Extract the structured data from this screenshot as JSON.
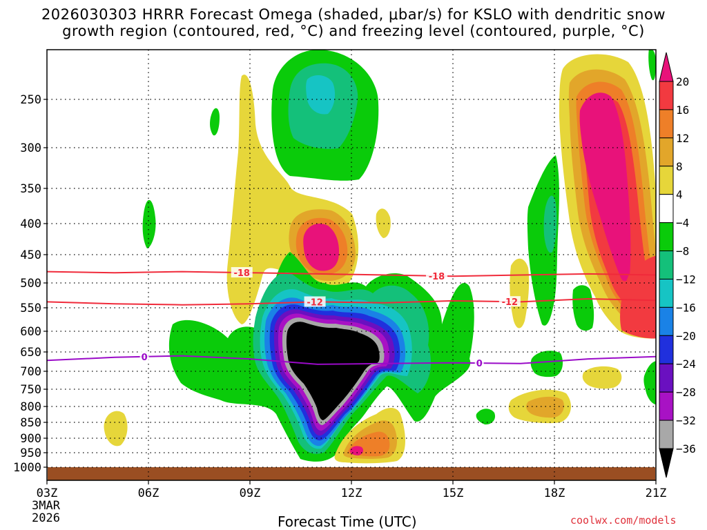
{
  "title_line1": "2026030303 HRRR Forecast Omega (shaded, μbar/s) for KSLO with dendritic snow",
  "title_line2": "growth region (contoured, red, °C) and freezing level (contoured, purple, °C)",
  "watermark": "coolwx.com/models",
  "chart_data": {
    "type": "heatmap",
    "title": "2026030303 HRRR Forecast Omega (shaded, μbar/s) for KSLO with dendritic snow growth region (contoured, red, °C) and freezing level (contoured, purple, °C)",
    "xlabel": "Forecast Time (UTC)",
    "x_ticks": [
      "03Z",
      "06Z",
      "09Z",
      "12Z",
      "15Z",
      "18Z",
      "21Z"
    ],
    "x_start_label": [
      "3MAR",
      "2026"
    ],
    "x_range_hours": [
      0,
      18
    ],
    "y_ticks": [
      250,
      300,
      350,
      400,
      450,
      500,
      550,
      600,
      650,
      700,
      750,
      800,
      850,
      900,
      950,
      1000
    ],
    "y_range_hpa": [
      200,
      1000
    ],
    "colorbar_labels": [
      "20",
      "16",
      "12",
      "8",
      "4",
      "−4",
      "−8",
      "−12",
      "−16",
      "−20",
      "−24",
      "−28",
      "−32",
      "−36"
    ],
    "colorbar_colors": [
      "#e8127a",
      "#f23a40",
      "#ee7f28",
      "#e2a62a",
      "#e6d63a",
      "#ffffff",
      "#0acb0a",
      "#14c07a",
      "#16c4c4",
      "#1a82e6",
      "#2030dd",
      "#6a10c0",
      "#a812c4",
      "#a8a8a8",
      "#000000"
    ],
    "contours": [
      {
        "name": "dendritic -18",
        "color": "#f02a3a",
        "label": "-18",
        "pressures_hpa": [
          480,
          482,
          480,
          482,
          484,
          486,
          488,
          486,
          484,
          486
        ]
      },
      {
        "name": "dendritic -12",
        "color": "#f02a3a",
        "label": "-12",
        "pressures_hpa": [
          538,
          542,
          544,
          542,
          538,
          540,
          536,
          538,
          532,
          535
        ]
      },
      {
        "name": "freezing level 0",
        "color": "#9a0ac8",
        "label": "0",
        "pressures_hpa": [
          672,
          664,
          660,
          668,
          682,
          680,
          678,
          680,
          668,
          662
        ]
      }
    ],
    "max_upward_omega": "< -36 μbar/s near 11-12Z, 580-880 hPa",
    "max_downward_omega": "> 20 μbar/s near 19-20Z, 260-480 hPa",
    "surface_color": "#9a4e22"
  }
}
